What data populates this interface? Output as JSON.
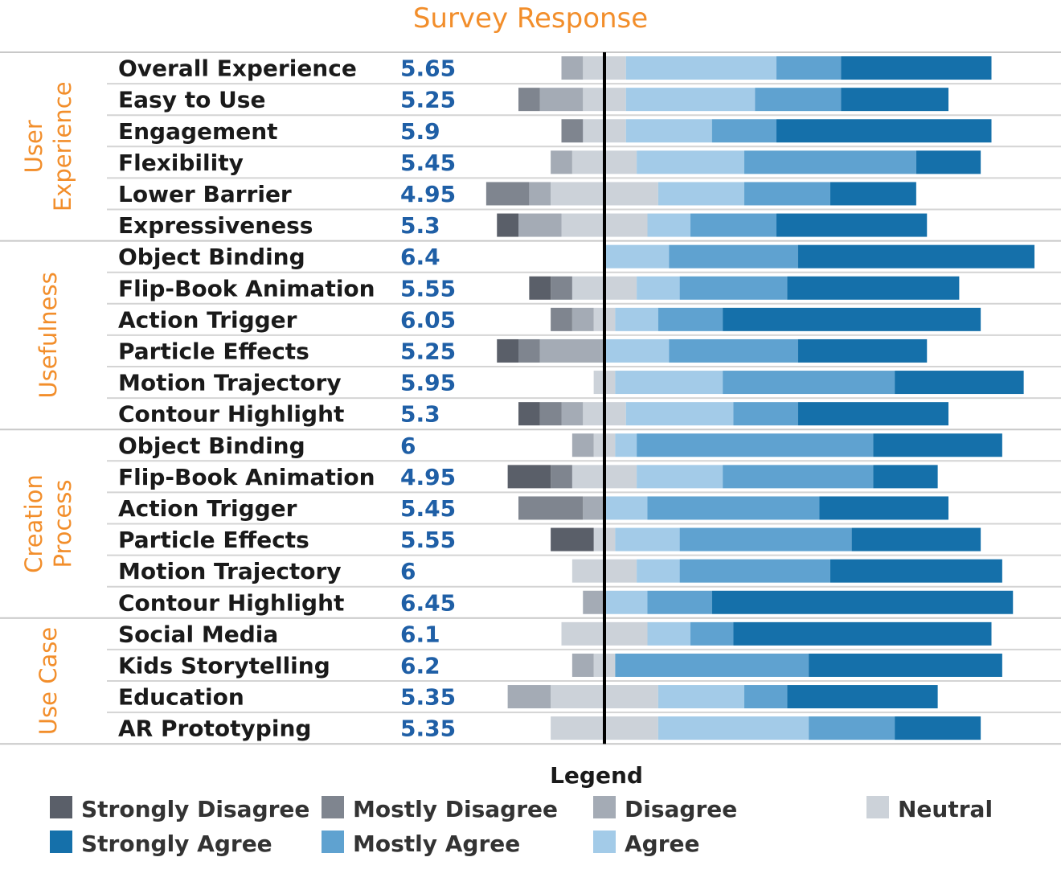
{
  "chart_data": {
    "type": "bar",
    "subtype": "diverging-stacked-likert",
    "title": "Survey Response",
    "scale_units": "percent of respondents",
    "levels": [
      "Strongly Disagree",
      "Mostly Disagree",
      "Disagree",
      "Neutral",
      "Agree",
      "Mostly Agree",
      "Strongly Agree"
    ],
    "colors": {
      "Strongly Disagree": "#5a5f69",
      "Mostly Disagree": "#7f858f",
      "Disagree": "#a4abb5",
      "Neutral": "#ccd2d9",
      "Agree": "#a3cbe8",
      "Mostly Agree": "#5fa2d0",
      "Strongly Agree": "#1570aa"
    },
    "groups": [
      {
        "name": "User Experience",
        "label_lines": [
          "User",
          "Experience"
        ],
        "rows": [
          {
            "label": "Overall Experience",
            "score": "5.65",
            "values": {
              "Strongly Disagree": 0,
              "Mostly Disagree": 0,
              "Disagree": 5,
              "Neutral": 10,
              "Agree": 35,
              "Mostly Agree": 15,
              "Strongly Agree": 35
            }
          },
          {
            "label": "Easy to Use",
            "score": "5.25",
            "values": {
              "Strongly Disagree": 0,
              "Mostly Disagree": 5,
              "Disagree": 10,
              "Neutral": 10,
              "Agree": 30,
              "Mostly Agree": 20,
              "Strongly Agree": 25
            }
          },
          {
            "label": "Engagement",
            "score": "5.9",
            "values": {
              "Strongly Disagree": 0,
              "Mostly Disagree": 5,
              "Disagree": 0,
              "Neutral": 10,
              "Agree": 20,
              "Mostly Agree": 15,
              "Strongly Agree": 50
            }
          },
          {
            "label": "Flexibility",
            "score": "5.45",
            "values": {
              "Strongly Disagree": 0,
              "Mostly Disagree": 0,
              "Disagree": 5,
              "Neutral": 15,
              "Agree": 25,
              "Mostly Agree": 40,
              "Strongly Agree": 15
            }
          },
          {
            "label": "Lower Barrier",
            "score": "4.95",
            "values": {
              "Strongly Disagree": 0,
              "Mostly Disagree": 10,
              "Disagree": 5,
              "Neutral": 25,
              "Agree": 20,
              "Mostly Agree": 20,
              "Strongly Agree": 20
            }
          },
          {
            "label": "Expressiveness",
            "score": "5.3",
            "values": {
              "Strongly Disagree": 5,
              "Mostly Disagree": 0,
              "Disagree": 10,
              "Neutral": 20,
              "Agree": 10,
              "Mostly Agree": 20,
              "Strongly Agree": 35
            }
          }
        ]
      },
      {
        "name": "Usefulness",
        "label_lines": [
          "Usefulness"
        ],
        "rows": [
          {
            "label": "Object Binding",
            "score": "6.4",
            "values": {
              "Strongly Disagree": 0,
              "Mostly Disagree": 0,
              "Disagree": 0,
              "Neutral": 0,
              "Agree": 15,
              "Mostly Agree": 30,
              "Strongly Agree": 55
            }
          },
          {
            "label": "Flip-Book Animation",
            "score": "5.55",
            "values": {
              "Strongly Disagree": 5,
              "Mostly Disagree": 5,
              "Disagree": 0,
              "Neutral": 15,
              "Agree": 10,
              "Mostly Agree": 25,
              "Strongly Agree": 40
            }
          },
          {
            "label": "Action Trigger",
            "score": "6.05",
            "values": {
              "Strongly Disagree": 0,
              "Mostly Disagree": 5,
              "Disagree": 5,
              "Neutral": 5,
              "Agree": 10,
              "Mostly Agree": 15,
              "Strongly Agree": 60
            }
          },
          {
            "label": "Particle Effects",
            "score": "5.25",
            "values": {
              "Strongly Disagree": 5,
              "Mostly Disagree": 5,
              "Disagree": 15,
              "Neutral": 0,
              "Agree": 15,
              "Mostly Agree": 30,
              "Strongly Agree": 30
            }
          },
          {
            "label": "Motion Trajectory",
            "score": "5.95",
            "values": {
              "Strongly Disagree": 0,
              "Mostly Disagree": 0,
              "Disagree": 0,
              "Neutral": 5,
              "Agree": 25,
              "Mostly Agree": 40,
              "Strongly Agree": 30
            }
          },
          {
            "label": "Contour Highlight",
            "score": "5.3",
            "values": {
              "Strongly Disagree": 5,
              "Mostly Disagree": 5,
              "Disagree": 5,
              "Neutral": 10,
              "Agree": 25,
              "Mostly Agree": 15,
              "Strongly Agree": 35
            }
          }
        ]
      },
      {
        "name": "Creation Process",
        "label_lines": [
          "Creation",
          "Process"
        ],
        "rows": [
          {
            "label": "Object Binding",
            "score": "6",
            "values": {
              "Strongly Disagree": 0,
              "Mostly Disagree": 0,
              "Disagree": 5,
              "Neutral": 5,
              "Agree": 5,
              "Mostly Agree": 55,
              "Strongly Agree": 30
            }
          },
          {
            "label": "Flip-Book Animation",
            "score": "4.95",
            "values": {
              "Strongly Disagree": 10,
              "Mostly Disagree": 5,
              "Disagree": 0,
              "Neutral": 15,
              "Agree": 20,
              "Mostly Agree": 35,
              "Strongly Agree": 15
            }
          },
          {
            "label": "Action Trigger",
            "score": "5.45",
            "values": {
              "Strongly Disagree": 0,
              "Mostly Disagree": 15,
              "Disagree": 5,
              "Neutral": 0,
              "Agree": 10,
              "Mostly Agree": 40,
              "Strongly Agree": 30
            }
          },
          {
            "label": "Particle Effects",
            "score": "5.55",
            "values": {
              "Strongly Disagree": 10,
              "Mostly Disagree": 0,
              "Disagree": 0,
              "Neutral": 5,
              "Agree": 15,
              "Mostly Agree": 40,
              "Strongly Agree": 30
            }
          },
          {
            "label": "Motion Trajectory",
            "score": "6",
            "values": {
              "Strongly Disagree": 0,
              "Mostly Disagree": 0,
              "Disagree": 0,
              "Neutral": 15,
              "Agree": 10,
              "Mostly Agree": 35,
              "Strongly Agree": 40
            }
          },
          {
            "label": "Contour Highlight",
            "score": "6.45",
            "values": {
              "Strongly Disagree": 0,
              "Mostly Disagree": 0,
              "Disagree": 5,
              "Neutral": 0,
              "Agree": 10,
              "Mostly Agree": 15,
              "Strongly Agree": 70
            }
          }
        ]
      },
      {
        "name": "Use Case",
        "label_lines": [
          "Use Case"
        ],
        "rows": [
          {
            "label": "Social Media",
            "score": "6.1",
            "values": {
              "Strongly Disagree": 0,
              "Mostly Disagree": 0,
              "Disagree": 0,
              "Neutral": 20,
              "Agree": 10,
              "Mostly Agree": 10,
              "Strongly Agree": 60
            }
          },
          {
            "label": "Kids Storytelling",
            "score": "6.2",
            "values": {
              "Strongly Disagree": 0,
              "Mostly Disagree": 0,
              "Disagree": 5,
              "Neutral": 5,
              "Agree": 0,
              "Mostly Agree": 45,
              "Strongly Agree": 45
            }
          },
          {
            "label": "Education",
            "score": "5.35",
            "values": {
              "Strongly Disagree": 0,
              "Mostly Disagree": 0,
              "Disagree": 10,
              "Neutral": 25,
              "Agree": 20,
              "Mostly Agree": 10,
              "Strongly Agree": 35
            }
          },
          {
            "label": "AR Prototyping",
            "score": "5.35",
            "values": {
              "Strongly Disagree": 0,
              "Mostly Disagree": 0,
              "Disagree": 0,
              "Neutral": 25,
              "Agree": 35,
              "Mostly Agree": 20,
              "Strongly Agree": 20
            }
          }
        ]
      }
    ],
    "legend": {
      "title": "Legend",
      "position": "bottom",
      "order": [
        "Strongly Disagree",
        "Mostly Disagree",
        "Disagree",
        "Neutral",
        "Strongly Agree",
        "Mostly Agree",
        "Agree"
      ]
    }
  }
}
